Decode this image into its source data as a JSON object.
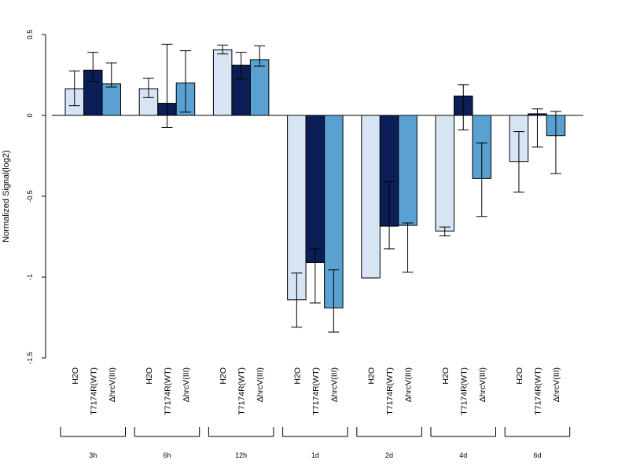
{
  "chart_data": {
    "type": "bar",
    "title": "",
    "xlabel": "",
    "ylabel": "Normalized Signal(log2)",
    "ylim": [
      -1.5,
      0.5
    ],
    "yticks": [
      {
        "value": 0.5,
        "label": "0.5"
      },
      {
        "value": 0,
        "label": "0"
      },
      {
        "value": -0.5,
        "label": "-0.5"
      },
      {
        "value": -1,
        "label": "-1"
      },
      {
        "value": -1.5,
        "label": "-1.5"
      }
    ],
    "grid": false,
    "legend": "none",
    "groups": [
      "3h",
      "6h",
      "12h",
      "1d",
      "2d",
      "4d",
      "6d"
    ],
    "category_labels": [
      "H2O",
      "T7174R(WT)",
      "ΔhrcV(III)"
    ],
    "colors": [
      "#d6e4f4",
      "#0b1f56",
      "#5aa0d0"
    ],
    "series": [
      {
        "values": [
          0.165,
          0.165,
          0.405,
          -1.14,
          -1.005,
          -0.715,
          -0.285
        ],
        "err_low": [
          0.06,
          0.11,
          0.38,
          -1.31,
          -1.005,
          -0.745,
          -0.475
        ],
        "err_high": [
          0.275,
          0.23,
          0.435,
          -0.975,
          -1.005,
          -0.69,
          -0.1
        ]
      },
      {
        "values": [
          0.28,
          0.075,
          0.31,
          -0.91,
          -0.685,
          0.12,
          0.01
        ],
        "err_low": [
          0.21,
          -0.075,
          0.225,
          -1.16,
          -0.825,
          -0.09,
          -0.195
        ],
        "err_high": [
          0.39,
          0.44,
          0.39,
          -0.825,
          -0.41,
          0.19,
          0.04
        ]
      },
      {
        "values": [
          0.195,
          0.2,
          0.345,
          -1.19,
          -0.68,
          -0.39,
          -0.125
        ],
        "err_low": [
          0.175,
          0.02,
          0.305,
          -1.34,
          -0.97,
          -0.625,
          -0.36
        ],
        "err_high": [
          0.325,
          0.4,
          0.43,
          -0.955,
          -0.665,
          -0.17,
          0.025
        ]
      }
    ]
  }
}
